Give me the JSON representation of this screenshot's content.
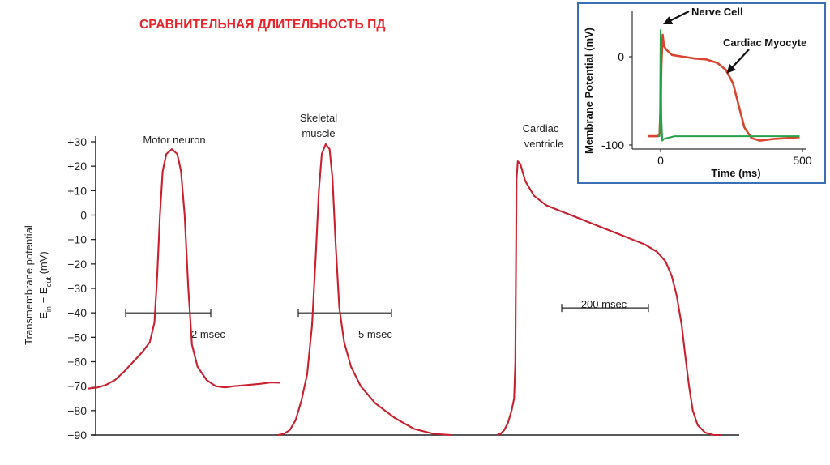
{
  "slide": {
    "title": "СРАВНИТЕЛЬНАЯ ДЛИТЕЛЬНОСТЬ ПД"
  },
  "colors": {
    "title": "#e8232a",
    "trace_main": "#c8202f",
    "inset_cardiac": "#d9442e",
    "inset_nerve": "#25a34a",
    "inset_border": "#3a6fb5"
  },
  "chart_data": [
    {
      "type": "line",
      "title": "",
      "ylabel_line1": "Transmembrane potential",
      "ylabel_line2_parts": [
        "E",
        "in",
        " − E",
        "out",
        " (mV)"
      ],
      "ylim": [
        -90,
        30
      ],
      "yticks": [
        30,
        20,
        10,
        0,
        -10,
        -20,
        -30,
        -40,
        -50,
        -60,
        -70,
        -80,
        -90
      ],
      "ytick_labels": [
        "+30",
        "+20",
        "+10",
        "0",
        "−10",
        "−20",
        "−30",
        "−40",
        "−50",
        "−60",
        "−70",
        "−80",
        "−90"
      ],
      "grid": false,
      "series": [
        {
          "name": "Motor neuron",
          "scale_bar_label": "2 msec",
          "scale_bar_value_mV": -40,
          "points": [
            [
              0,
              -71
            ],
            [
              1,
              -70.6
            ],
            [
              2,
              -69.5
            ],
            [
              3,
              -67.5
            ],
            [
              4,
              -64
            ],
            [
              5,
              -60
            ],
            [
              6,
              -56
            ],
            [
              6.8,
              -52
            ],
            [
              7.3,
              -44
            ],
            [
              7.6,
              -25
            ],
            [
              7.9,
              0
            ],
            [
              8.2,
              18
            ],
            [
              8.6,
              25
            ],
            [
              9.2,
              27
            ],
            [
              9.8,
              25
            ],
            [
              10.2,
              18
            ],
            [
              10.6,
              0
            ],
            [
              11,
              -30
            ],
            [
              11.4,
              -53
            ],
            [
              12,
              -62
            ],
            [
              13,
              -67.5
            ],
            [
              14,
              -70
            ],
            [
              15,
              -70.5
            ],
            [
              16,
              -70
            ],
            [
              17.5,
              -69.5
            ],
            [
              19,
              -69
            ],
            [
              20,
              -68.5
            ],
            [
              21,
              -68.6
            ]
          ]
        },
        {
          "name": "Skeletal muscle",
          "scale_bar_label": "5 msec",
          "scale_bar_value_mV": -40,
          "points": [
            [
              0,
              -90
            ],
            [
              0.6,
              -89.5
            ],
            [
              1.2,
              -88
            ],
            [
              1.8,
              -84
            ],
            [
              2.4,
              -76
            ],
            [
              3,
              -65
            ],
            [
              3.5,
              -45
            ],
            [
              3.9,
              -15
            ],
            [
              4.2,
              10
            ],
            [
              4.5,
              25
            ],
            [
              4.9,
              29
            ],
            [
              5.3,
              27
            ],
            [
              5.6,
              15
            ],
            [
              5.9,
              -10
            ],
            [
              6.3,
              -38
            ],
            [
              6.8,
              -52
            ],
            [
              7.5,
              -62
            ],
            [
              8.5,
              -70
            ],
            [
              10,
              -77
            ],
            [
              12,
              -83
            ],
            [
              14,
              -87.5
            ],
            [
              16,
              -89.5
            ],
            [
              17.8,
              -90
            ]
          ]
        },
        {
          "name": "Cardiac ventricle",
          "scale_bar_label": "200 msec",
          "scale_bar_value_mV": -38,
          "points": [
            [
              0,
              -90
            ],
            [
              0.3,
              -89.5
            ],
            [
              0.6,
              -88
            ],
            [
              0.9,
              -85
            ],
            [
              1.2,
              -80
            ],
            [
              1.4,
              -75
            ],
            [
              1.5,
              -60
            ],
            [
              1.55,
              -20
            ],
            [
              1.6,
              15
            ],
            [
              1.7,
              22
            ],
            [
              1.9,
              21
            ],
            [
              2.3,
              14
            ],
            [
              3,
              8
            ],
            [
              4,
              4
            ],
            [
              5,
              2
            ],
            [
              6,
              0
            ],
            [
              7,
              -2
            ],
            [
              8,
              -4
            ],
            [
              9,
              -6
            ],
            [
              10,
              -8
            ],
            [
              11,
              -10
            ],
            [
              12,
              -12
            ],
            [
              13,
              -15
            ],
            [
              13.7,
              -19
            ],
            [
              14.2,
              -25
            ],
            [
              14.6,
              -33
            ],
            [
              15,
              -45
            ],
            [
              15.3,
              -58
            ],
            [
              15.6,
              -70
            ],
            [
              15.9,
              -80
            ],
            [
              16.3,
              -86
            ],
            [
              16.9,
              -89
            ],
            [
              17.6,
              -90
            ],
            [
              18.2,
              -90
            ]
          ]
        }
      ]
    },
    {
      "type": "line",
      "title": "",
      "xlabel": "Time (ms)",
      "ylabel": "Membrane Potential (mV)",
      "xlim": [
        -80,
        500
      ],
      "ylim": [
        -110,
        30
      ],
      "xticks": [
        0,
        500
      ],
      "yticks": [
        0,
        -100
      ],
      "grid": false,
      "annotations": [
        {
          "text": "Nerve Cell",
          "series": "Nerve Cell"
        },
        {
          "text": "Cardiac Myocyte",
          "series": "Cardiac Myocyte"
        }
      ],
      "series": [
        {
          "name": "Cardiac Myocyte",
          "points": [
            [
              -45,
              -90
            ],
            [
              -10,
              -90
            ],
            [
              -4,
              -88
            ],
            [
              0,
              -60
            ],
            [
              3,
              -10
            ],
            [
              7,
              25
            ],
            [
              12,
              12
            ],
            [
              20,
              8
            ],
            [
              40,
              2
            ],
            [
              80,
              0
            ],
            [
              120,
              -2
            ],
            [
              160,
              -3
            ],
            [
              200,
              -7
            ],
            [
              230,
              -15
            ],
            [
              255,
              -30
            ],
            [
              275,
              -55
            ],
            [
              295,
              -80
            ],
            [
              320,
              -92
            ],
            [
              350,
              -95
            ],
            [
              400,
              -93
            ],
            [
              450,
              -92
            ],
            [
              490,
              -91
            ]
          ]
        },
        {
          "name": "Nerve Cell",
          "points": [
            [
              -10,
              -90
            ],
            [
              -4,
              -90
            ],
            [
              -2,
              -60
            ],
            [
              0,
              30
            ],
            [
              3,
              -70
            ],
            [
              6,
              -95
            ],
            [
              12,
              -93
            ],
            [
              50,
              -90
            ],
            [
              150,
              -90
            ],
            [
              250,
              -90
            ],
            [
              400,
              -90
            ],
            [
              490,
              -90
            ]
          ]
        }
      ]
    }
  ]
}
